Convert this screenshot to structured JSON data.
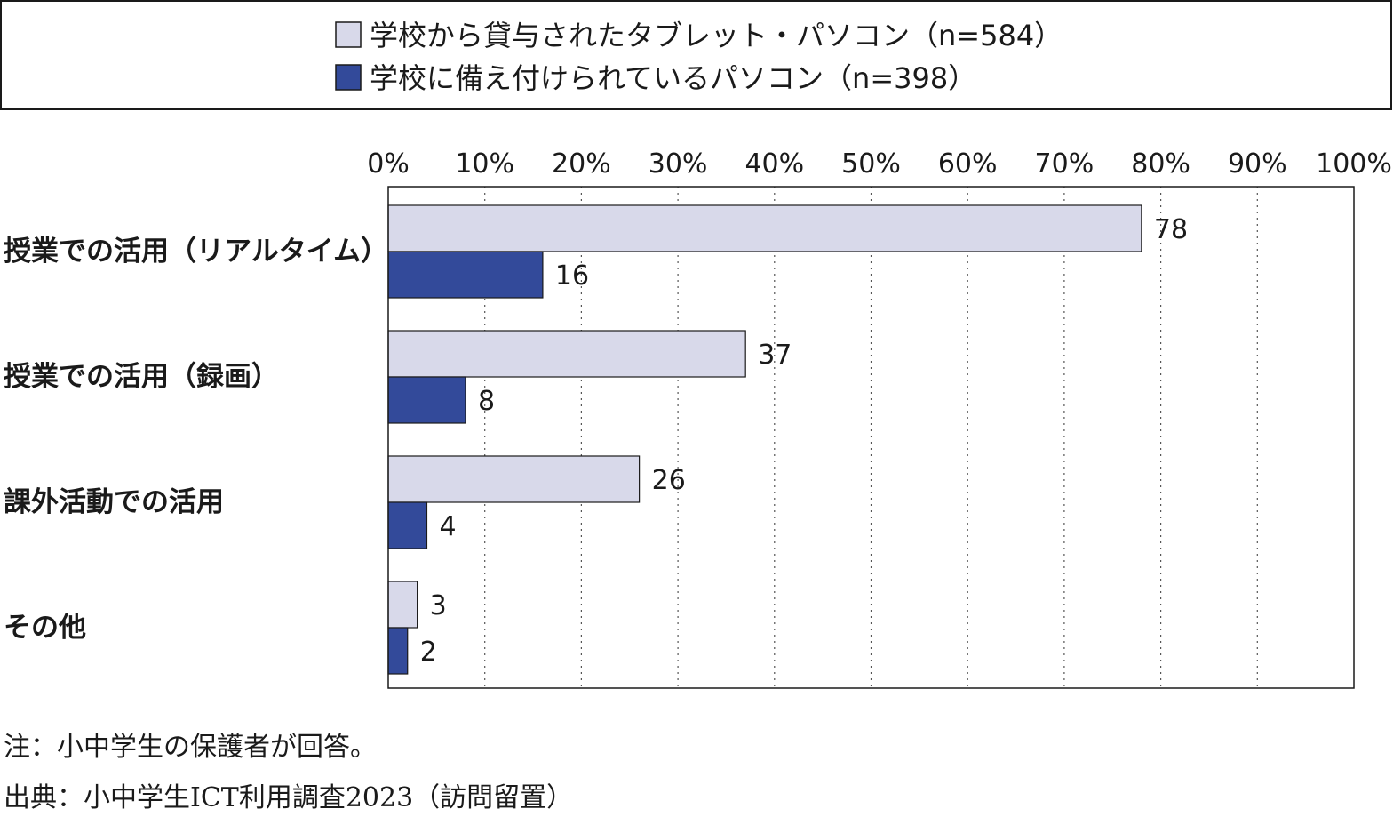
{
  "chart_data": {
    "type": "bar",
    "orientation": "horizontal",
    "categories": [
      "授業での活用（リアルタイム）",
      "授業での活用（録画）",
      "課外活動での活用",
      "その他"
    ],
    "series": [
      {
        "name": "学校から貸与されたタブレット・パソコン（n=584）",
        "values": [
          78,
          37,
          26,
          3
        ],
        "color": "#d8d9ea"
      },
      {
        "name": "学校に備え付けられているパソコン（n=398）",
        "values": [
          16,
          8,
          4,
          2
        ],
        "color": "#334a9a"
      }
    ],
    "x_ticks": [
      "0%",
      "10%",
      "20%",
      "30%",
      "40%",
      "50%",
      "60%",
      "70%",
      "80%",
      "90%",
      "100%"
    ],
    "xlim": [
      0,
      100
    ],
    "grid": "vertical dotted",
    "legend_position": "top"
  },
  "notes": {
    "note1": "注：小中学生の保護者が回答。",
    "note2": "出典：小中学生ICT利用調査2023（訪問留置）"
  }
}
